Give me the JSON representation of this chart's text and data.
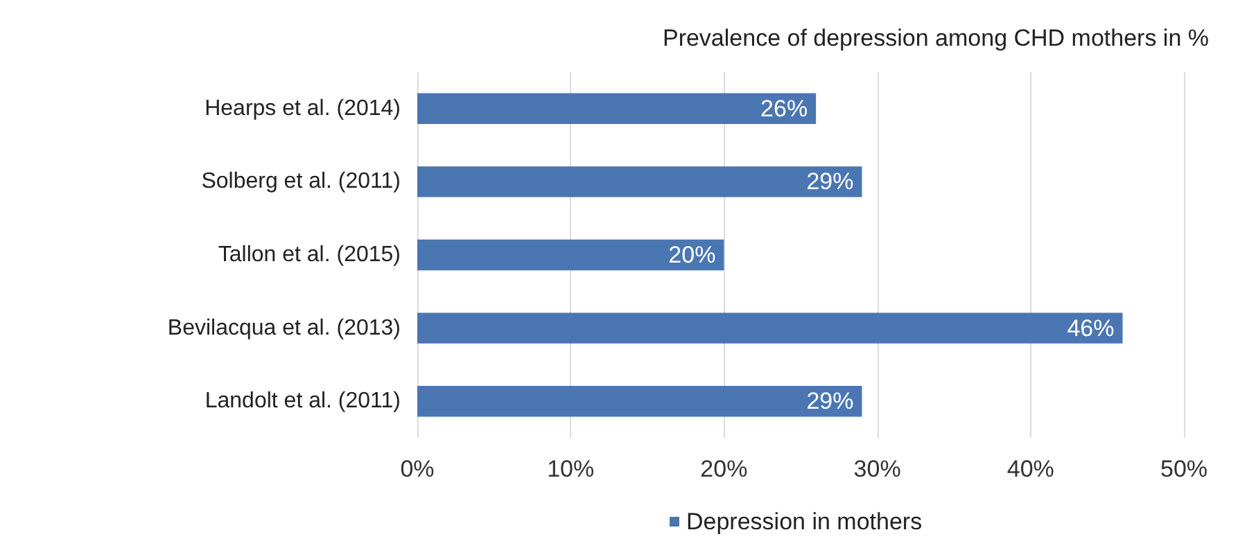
{
  "chart_data": {
    "type": "bar",
    "orientation": "horizontal",
    "title": "Prevalence of depression among CHD mothers in %",
    "categories": [
      "Hearps et al. (2014)",
      "Solberg et al. (2011)",
      "Tallon et al. (2015)",
      "Bevilacqua et al. (2013)",
      "Landolt et al. (2011)"
    ],
    "series": [
      {
        "name": "Depression in mothers",
        "color": "#4a76b2",
        "values": [
          26,
          29,
          20,
          46,
          29
        ],
        "value_labels": [
          "26%",
          "29%",
          "20%",
          "46%",
          "29%"
        ]
      }
    ],
    "xlim": [
      0,
      50
    ],
    "xticks": [
      {
        "value": 0,
        "label": "0%"
      },
      {
        "value": 10,
        "label": "10%"
      },
      {
        "value": 20,
        "label": "20%"
      },
      {
        "value": 30,
        "label": "30%"
      },
      {
        "value": 40,
        "label": "40%"
      },
      {
        "value": 50,
        "label": "50%"
      }
    ],
    "grid": "x",
    "legend": "bottom"
  }
}
